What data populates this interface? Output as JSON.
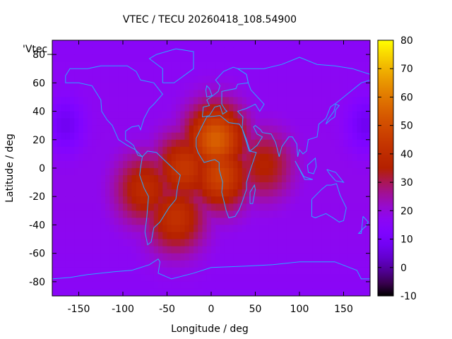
{
  "chart_data": {
    "type": "heatmap",
    "title": "VTEC / TECU 20260418_108.54900",
    "xlabel": "Longitude / deg",
    "ylabel": "Latitude / deg",
    "series_label": "'Vtec_",
    "xlim": [
      -180,
      180
    ],
    "ylim": [
      -90,
      90
    ],
    "xticks": [
      -150,
      -100,
      -50,
      0,
      50,
      100,
      150
    ],
    "yticks": [
      -80,
      -60,
      -40,
      -20,
      0,
      20,
      40,
      60,
      80
    ],
    "colorbar": {
      "min": -10,
      "max": 80,
      "ticks": [
        -10,
        0,
        10,
        20,
        30,
        40,
        50,
        60,
        70,
        80
      ]
    },
    "background_vtec": 16,
    "anomaly_centers": [
      {
        "lon": 5,
        "lat": 20,
        "vtec": 55
      },
      {
        "lon": -30,
        "lat": 0,
        "vtec": 44
      },
      {
        "lon": -40,
        "lat": -35,
        "vtec": 42
      },
      {
        "lon": -75,
        "lat": -15,
        "vtec": 40
      },
      {
        "lon": 60,
        "lat": 2,
        "vtec": 36
      },
      {
        "lon": 10,
        "lat": -5,
        "vtec": 48
      }
    ],
    "minima": [
      {
        "lon": -165,
        "lat": 30,
        "vtec": 6
      },
      {
        "lon": 175,
        "lat": 30,
        "vtec": 6
      }
    ]
  }
}
